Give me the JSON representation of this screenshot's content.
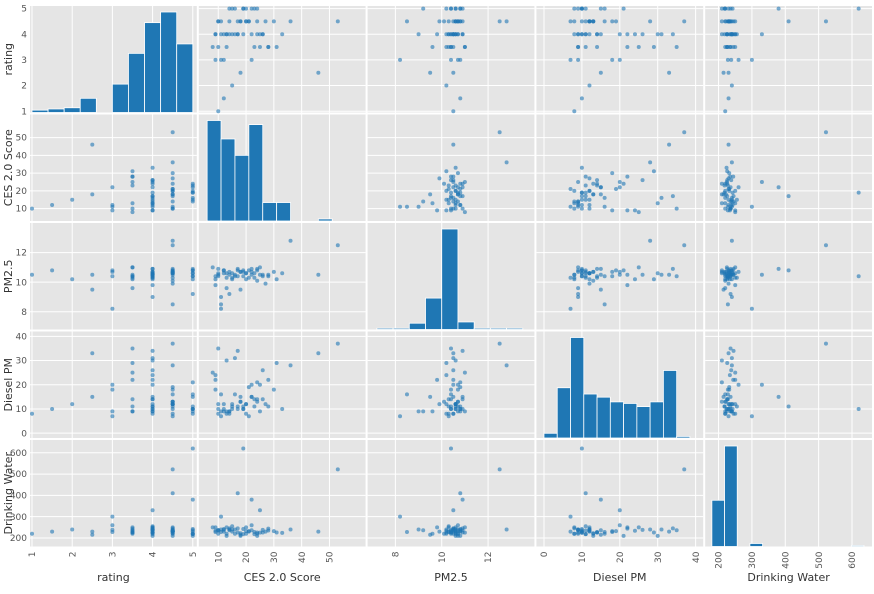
{
  "chart_data": {
    "type": "scatter",
    "variables": [
      "rating",
      "CES 2.0 Score",
      "PM2.5",
      "Diesel PM",
      "Drinking Water"
    ],
    "ranges": {
      "rating": [
        0.95,
        5.1
      ],
      "CES 2.0 Score": [
        3,
        63
      ],
      "PM2.5": [
        6.8,
        14.0
      ],
      "Diesel PM": [
        -2,
        42
      ],
      "Drinking Water": [
        160,
        660
      ]
    },
    "ticks": {
      "rating": [
        "1",
        "2",
        "3",
        "4",
        "5"
      ],
      "CES 2.0 Score": [
        "10",
        "20",
        "30",
        "40",
        "50"
      ],
      "PM2.5": [
        "8",
        "10",
        "12"
      ],
      "Diesel PM": [
        "0",
        "10",
        "20",
        "30",
        "40"
      ],
      "Drinking Water": [
        "200",
        "300",
        "400",
        "500",
        "600"
      ]
    },
    "series": [
      {
        "name": "rating",
        "values": [
          1,
          1.5,
          2,
          2.5,
          3,
          3.5,
          3.5,
          4,
          4,
          4,
          4.5,
          4.5,
          4.5,
          5,
          5,
          5,
          4,
          4.5,
          3.5,
          4,
          5,
          4.5,
          4,
          3,
          3.5,
          4,
          4.5,
          5,
          4,
          4.5,
          2.5,
          3,
          3.5,
          4,
          4.5,
          5,
          4,
          4.5,
          4,
          3.5,
          4.5,
          4,
          5,
          4.5,
          4,
          3.5,
          4.5,
          4,
          5,
          4.5,
          4,
          3,
          4,
          4.5,
          4.5,
          4,
          3.5,
          4,
          5,
          4.5
        ]
      },
      {
        "name": "CES 2.0 Score",
        "values": [
          10,
          12,
          15,
          18,
          22,
          25,
          28,
          9,
          13,
          17,
          21,
          24,
          11,
          14,
          19,
          23,
          26,
          30,
          8,
          16,
          20,
          27,
          33,
          12,
          10,
          15,
          18,
          22,
          25,
          36,
          46,
          11,
          13,
          17,
          20,
          24,
          9,
          14,
          19,
          23,
          10,
          12,
          16,
          21,
          26,
          31,
          53,
          11,
          15,
          18,
          22,
          9,
          13,
          17,
          20,
          24,
          28,
          14,
          19,
          10
        ]
      },
      {
        "name": "PM2.5",
        "values": [
          10.5,
          10.8,
          10.2,
          9.5,
          10.7,
          11.0,
          10.4,
          9.8,
          10.6,
          10.9,
          10.3,
          10.1,
          8.5,
          9.2,
          10.8,
          10.6,
          10.4,
          10.7,
          11.0,
          10.5,
          10.2,
          9.9,
          10.6,
          10.8,
          10.4,
          10.3,
          10.7,
          10.9,
          10.5,
          12.8,
          10.5,
          8.2,
          9.6,
          10.4,
          10.6,
          10.8,
          10.2,
          10.5,
          10.7,
          10.3,
          10.9,
          10.6,
          10.4,
          10.8,
          10.5,
          10.2,
          12.5,
          9.0,
          10.6,
          10.7,
          10.5,
          10.4,
          10.3,
          10.8,
          10.6,
          10.9,
          10.5,
          10.7,
          10.4,
          10.6
        ]
      },
      {
        "name": "Diesel PM",
        "values": [
          8,
          10,
          12,
          15,
          20,
          9,
          11,
          22,
          30,
          34,
          7,
          13,
          16,
          9,
          10,
          11,
          14,
          18,
          25,
          31,
          8,
          12,
          10,
          9,
          35,
          11,
          13,
          15,
          20,
          28,
          33,
          7,
          9,
          10,
          12,
          21,
          24,
          8,
          11,
          14,
          10,
          12,
          16,
          19,
          26,
          29,
          37,
          9,
          10,
          13,
          15,
          18,
          8,
          11,
          12,
          14,
          22,
          9,
          10,
          12
        ]
      },
      {
        "name": "Drinking Water",
        "values": [
          220,
          230,
          240,
          215,
          260,
          225,
          235,
          250,
          210,
          245,
          230,
          220,
          228,
          236,
          242,
          218,
          226,
          232,
          250,
          240,
          220,
          230,
          224,
          238,
          236,
          255,
          210,
          380,
          330,
          240,
          230,
          300,
          220,
          226,
          250,
          210,
          234,
          245,
          218,
          228,
          236,
          242,
          220,
          232,
          238,
          226,
          522,
          240,
          230,
          222,
          236,
          228,
          250,
          410,
          232,
          226,
          244,
          240,
          620,
          236
        ]
      }
    ],
    "histograms": {
      "rating": {
        "bins": [
          1,
          1.4,
          1.8,
          2.2,
          2.6,
          3.0,
          3.4,
          3.8,
          4.2,
          4.6,
          5.0
        ],
        "counts": [
          2,
          3,
          4,
          12,
          0,
          24,
          50,
          76,
          85,
          58
        ]
      },
      "CES 2.0 Score": {
        "bins": [
          6,
          11,
          16,
          21,
          26,
          31,
          36,
          41,
          46,
          51,
          56
        ],
        "counts": [
          98,
          80,
          64,
          94,
          18,
          18,
          0,
          0,
          2,
          0
        ]
      },
      "PM2.5": {
        "bins": [
          7.2,
          7.9,
          8.6,
          9.3,
          10.0,
          10.7,
          11.4,
          12.1,
          12.8,
          13.5
        ],
        "counts": [
          1,
          1,
          5,
          25,
          80,
          6,
          1,
          1,
          1
        ]
      },
      "Diesel PM": {
        "bins": [
          0,
          3.5,
          7,
          10.5,
          14,
          17.5,
          21,
          24.5,
          28,
          31.5,
          35,
          38.5
        ],
        "counts": [
          3,
          32,
          64,
          28,
          26,
          23,
          22,
          20,
          23,
          43,
          1
        ]
      },
      "Drinking Water": {
        "bins": [
          180,
          218,
          256,
          294,
          332,
          370,
          408,
          446,
          484,
          522,
          560,
          598,
          636
        ],
        "counts": [
          46,
          100,
          0,
          3,
          0,
          0,
          0,
          0,
          0,
          0,
          0,
          1
        ]
      }
    },
    "grid": true,
    "colors": {
      "points": "#1f77b4",
      "panel": "#e5e5e5",
      "grid": "#ffffff",
      "bar": "#1f77b4"
    }
  }
}
